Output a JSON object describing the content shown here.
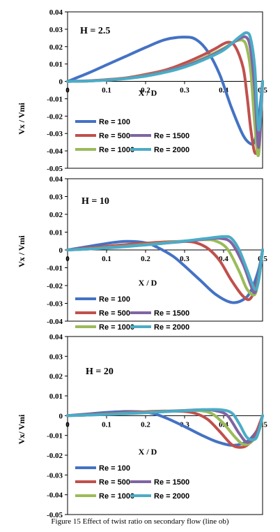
{
  "caption": "Figure 15 Effect of twist ratio on secondary flow (line ob)",
  "colors": {
    "Re = 100": "#4472C4",
    "Re = 500": "#C0504D",
    "Re = 1000": "#9BBB59",
    "Re = 1500": "#8064A2",
    "Re = 2000": "#4BACC6"
  },
  "chart_data": [
    {
      "type": "line",
      "annotation": "H = 2.5",
      "xlabel": "X / D",
      "ylabel": "Vx / Vmi",
      "xlim": [
        0,
        0.5
      ],
      "ylim": [
        -0.05,
        0.04
      ],
      "xticks": [
        "0",
        "0.1",
        "0.2",
        "0.3",
        "0.4",
        "0.5"
      ],
      "yticks": [
        "0.04",
        "0.03",
        "0.02",
        "0.01",
        "0",
        "-0.01",
        "-0.02",
        "-0.03",
        "-0.04",
        "-0.05"
      ],
      "grid": false,
      "legend": "bottom-left",
      "series": [
        {
          "name": "Re = 100",
          "x": [
            0,
            0.05,
            0.1,
            0.15,
            0.2,
            0.25,
            0.3,
            0.33,
            0.36,
            0.39,
            0.42,
            0.45,
            0.47,
            0.48,
            0.49,
            0.5
          ],
          "y": [
            0,
            0.0045,
            0.0095,
            0.0145,
            0.0195,
            0.024,
            0.0255,
            0.024,
            0.017,
            0.004,
            -0.015,
            -0.031,
            -0.036,
            -0.034,
            -0.022,
            0
          ]
        },
        {
          "name": "Re = 500",
          "x": [
            0,
            0.05,
            0.1,
            0.15,
            0.2,
            0.25,
            0.3,
            0.35,
            0.38,
            0.41,
            0.43,
            0.45,
            0.46,
            0.47,
            0.48,
            0.49,
            0.5
          ],
          "y": [
            0,
            0.0003,
            0.001,
            0.002,
            0.004,
            0.0065,
            0.0105,
            0.0155,
            0.019,
            0.0225,
            0.02,
            0.008,
            -0.008,
            -0.028,
            -0.041,
            -0.035,
            0
          ]
        },
        {
          "name": "Re = 1000",
          "x": [
            0,
            0.05,
            0.1,
            0.15,
            0.2,
            0.25,
            0.3,
            0.35,
            0.4,
            0.43,
            0.45,
            0.46,
            0.47,
            0.48,
            0.49,
            0.5
          ],
          "y": [
            0,
            0.0002,
            0.0008,
            0.0018,
            0.0035,
            0.0058,
            0.009,
            0.0135,
            0.019,
            0.023,
            0.0235,
            0.019,
            0.005,
            -0.025,
            -0.042,
            0
          ]
        },
        {
          "name": "Re = 1500",
          "x": [
            0,
            0.05,
            0.1,
            0.15,
            0.2,
            0.25,
            0.3,
            0.35,
            0.4,
            0.44,
            0.46,
            0.47,
            0.48,
            0.49,
            0.5
          ],
          "y": [
            0,
            0.0002,
            0.0008,
            0.0017,
            0.0033,
            0.0056,
            0.0088,
            0.013,
            0.0185,
            0.0245,
            0.025,
            0.017,
            -0.005,
            -0.038,
            0
          ]
        },
        {
          "name": "Re = 2000",
          "x": [
            0,
            0.05,
            0.1,
            0.15,
            0.2,
            0.25,
            0.3,
            0.35,
            0.4,
            0.44,
            0.46,
            0.47,
            0.48,
            0.49,
            0.5
          ],
          "y": [
            0,
            0.0002,
            0.0007,
            0.0016,
            0.003,
            0.0052,
            0.0082,
            0.0125,
            0.018,
            0.0255,
            0.028,
            0.024,
            0.008,
            -0.028,
            0
          ]
        }
      ]
    },
    {
      "type": "line",
      "annotation": "H = 10",
      "xlabel": "X / D",
      "ylabel": "Vx / Vmi",
      "xlim": [
        0,
        0.5
      ],
      "ylim": [
        -0.04,
        0.04
      ],
      "xticks": [
        "0",
        "0.1",
        "0.2",
        "0.3",
        "0.4",
        "0.5"
      ],
      "yticks": [
        "0.04",
        "0.03",
        "0.02",
        "0.01",
        "0",
        "-0.01",
        "-0.02",
        "-0.03",
        "-0.04"
      ],
      "grid": false,
      "legend": "bottom-left",
      "series": [
        {
          "name": "Re = 100",
          "x": [
            0,
            0.05,
            0.1,
            0.15,
            0.2,
            0.23,
            0.27,
            0.3,
            0.34,
            0.38,
            0.42,
            0.45,
            0.47,
            0.49,
            0.5
          ],
          "y": [
            0,
            0.0018,
            0.0036,
            0.0048,
            0.004,
            0.0015,
            -0.0035,
            -0.009,
            -0.017,
            -0.025,
            -0.0295,
            -0.028,
            -0.023,
            -0.011,
            0
          ]
        },
        {
          "name": "Re = 500",
          "x": [
            0,
            0.05,
            0.1,
            0.15,
            0.2,
            0.25,
            0.3,
            0.33,
            0.36,
            0.39,
            0.42,
            0.45,
            0.47,
            0.49,
            0.5
          ],
          "y": [
            0,
            0.001,
            0.002,
            0.003,
            0.0038,
            0.0045,
            0.0048,
            0.004,
            0.0008,
            -0.006,
            -0.017,
            -0.026,
            -0.027,
            -0.015,
            0
          ]
        },
        {
          "name": "Re = 1000",
          "x": [
            0,
            0.05,
            0.1,
            0.15,
            0.2,
            0.25,
            0.3,
            0.35,
            0.38,
            0.41,
            0.44,
            0.46,
            0.48,
            0.49,
            0.5
          ],
          "y": [
            0,
            0.0006,
            0.0014,
            0.0022,
            0.0031,
            0.004,
            0.005,
            0.0058,
            0.005,
            0.0005,
            -0.012,
            -0.022,
            -0.025,
            -0.015,
            0
          ]
        },
        {
          "name": "Re = 1500",
          "x": [
            0,
            0.05,
            0.1,
            0.15,
            0.2,
            0.25,
            0.3,
            0.35,
            0.39,
            0.42,
            0.45,
            0.47,
            0.48,
            0.49,
            0.5
          ],
          "y": [
            0,
            0.0005,
            0.0012,
            0.002,
            0.0029,
            0.0038,
            0.0048,
            0.006,
            0.0065,
            0.004,
            -0.008,
            -0.02,
            -0.024,
            -0.016,
            0
          ]
        },
        {
          "name": "Re = 2000",
          "x": [
            0,
            0.05,
            0.1,
            0.15,
            0.2,
            0.25,
            0.3,
            0.35,
            0.4,
            0.42,
            0.44,
            0.46,
            0.48,
            0.49,
            0.5
          ],
          "y": [
            0,
            0.0005,
            0.0011,
            0.0019,
            0.0028,
            0.0038,
            0.005,
            0.0063,
            0.0075,
            0.0065,
            0.0,
            -0.011,
            -0.022,
            -0.017,
            0
          ]
        }
      ]
    },
    {
      "type": "line",
      "annotation": "H = 20",
      "xlabel": "X / D",
      "ylabel": "Vx/ Vmi",
      "xlim": [
        0,
        0.5
      ],
      "ylim": [
        -0.05,
        0.04
      ],
      "xticks": [
        "0",
        "0.1",
        "0.2",
        "0.3",
        "0.4",
        "0.5"
      ],
      "yticks": [
        "0.04",
        "0.03",
        "0.02",
        "0.01",
        "0",
        "-0.01",
        "-0.02",
        "-0.03",
        "-0.04",
        "-0.05"
      ],
      "grid": false,
      "legend": "bottom-left",
      "series": [
        {
          "name": "Re = 100",
          "x": [
            0,
            0.05,
            0.1,
            0.15,
            0.2,
            0.23,
            0.26,
            0.3,
            0.34,
            0.38,
            0.42,
            0.45,
            0.47,
            0.49,
            0.5
          ],
          "y": [
            0,
            0.0008,
            0.0016,
            0.0021,
            0.0018,
            0.0005,
            -0.0018,
            -0.0055,
            -0.0095,
            -0.013,
            -0.015,
            -0.014,
            -0.0115,
            -0.006,
            0
          ]
        },
        {
          "name": "Re = 500",
          "x": [
            0,
            0.05,
            0.1,
            0.15,
            0.2,
            0.25,
            0.3,
            0.33,
            0.36,
            0.39,
            0.42,
            0.44,
            0.46,
            0.48,
            0.5
          ],
          "y": [
            0,
            0.0005,
            0.001,
            0.0015,
            0.002,
            0.0023,
            0.0021,
            0.001,
            -0.002,
            -0.008,
            -0.0145,
            -0.016,
            -0.015,
            -0.01,
            0
          ]
        },
        {
          "name": "Re = 1000",
          "x": [
            0,
            0.05,
            0.1,
            0.15,
            0.2,
            0.25,
            0.3,
            0.34,
            0.37,
            0.4,
            0.43,
            0.45,
            0.47,
            0.49,
            0.5
          ],
          "y": [
            0,
            0.0003,
            0.0008,
            0.0012,
            0.0017,
            0.0022,
            0.0026,
            0.0025,
            0.001,
            -0.004,
            -0.011,
            -0.0145,
            -0.0135,
            -0.008,
            0
          ]
        },
        {
          "name": "Re = 1500",
          "x": [
            0,
            0.05,
            0.1,
            0.15,
            0.2,
            0.25,
            0.3,
            0.35,
            0.38,
            0.41,
            0.44,
            0.46,
            0.48,
            0.49,
            0.5
          ],
          "y": [
            0,
            0.0003,
            0.0007,
            0.0011,
            0.0016,
            0.0021,
            0.0026,
            0.003,
            0.0025,
            0.0,
            -0.009,
            -0.0135,
            -0.011,
            -0.007,
            0
          ]
        },
        {
          "name": "Re = 2000",
          "x": [
            0,
            0.05,
            0.1,
            0.15,
            0.2,
            0.25,
            0.3,
            0.35,
            0.39,
            0.42,
            0.44,
            0.46,
            0.48,
            0.49,
            0.5
          ],
          "y": [
            0,
            0.0003,
            0.0006,
            0.001,
            0.0015,
            0.002,
            0.0025,
            0.003,
            0.003,
            0.0015,
            -0.004,
            -0.011,
            -0.012,
            -0.008,
            0
          ]
        }
      ]
    }
  ]
}
